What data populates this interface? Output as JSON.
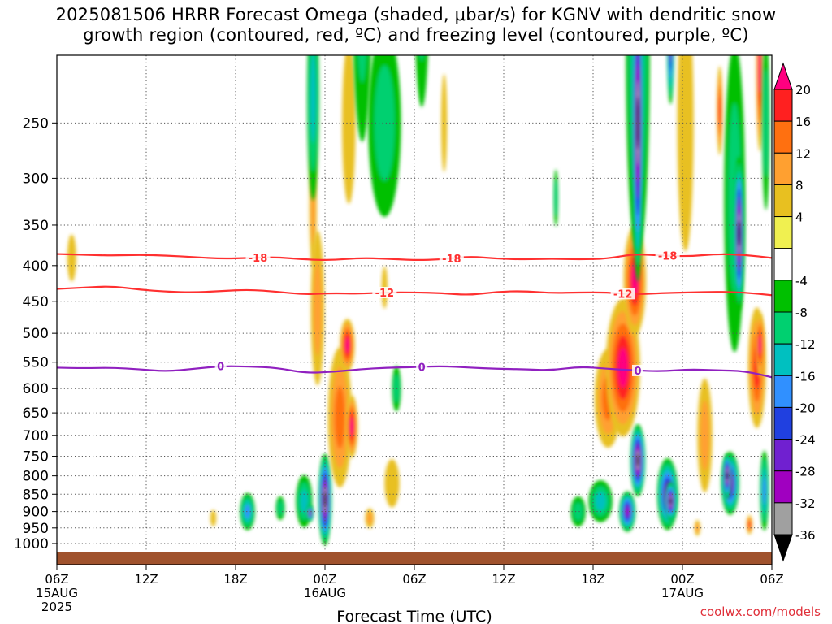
{
  "title": {
    "line1": "2025081506 HRRR Forecast Omega (shaded, μbar/s) for KGNV with dendritic snow",
    "line2": "growth region (contoured, red, ºC) and freezing level (contoured, purple, ºC)"
  },
  "credit": "coolwx.com/models",
  "chart_data": {
    "type": "heatmap",
    "xlabel": "Forecast Time (UTC)",
    "x_range_hours": [
      0,
      48
    ],
    "x_ticks": [
      {
        "hour": 0,
        "label": "06Z",
        "sub1": "15AUG",
        "sub2": "2025"
      },
      {
        "hour": 6,
        "label": "12Z"
      },
      {
        "hour": 12,
        "label": "18Z"
      },
      {
        "hour": 18,
        "label": "00Z",
        "sub1": "16AUG"
      },
      {
        "hour": 24,
        "label": "06Z"
      },
      {
        "hour": 30,
        "label": "12Z"
      },
      {
        "hour": 36,
        "label": "18Z"
      },
      {
        "hour": 42,
        "label": "00Z",
        "sub1": "17AUG"
      },
      {
        "hour": 48,
        "label": "06Z"
      }
    ],
    "y_scale": "log-pressure",
    "y_range_hpa": [
      200,
      1030
    ],
    "y_ticks": [
      250,
      300,
      350,
      400,
      450,
      500,
      550,
      600,
      650,
      700,
      750,
      800,
      850,
      900,
      950,
      1000
    ],
    "grid": "dotted",
    "colorbar": {
      "labels": [
        "20",
        "16",
        "12",
        "8",
        "4",
        "-4",
        "-8",
        "-12",
        "-16",
        "-20",
        "-24",
        "-28",
        "-32",
        "-36"
      ],
      "colors": [
        "#ff0080",
        "#ff2020",
        "#ff7010",
        "#ffa030",
        "#e8c020",
        "#f0f050",
        "#ffffff",
        "#00c000",
        "#00d070",
        "#00c0c0",
        "#3090ff",
        "#2040e0",
        "#7020d0",
        "#a000c0",
        "#a0a0a0",
        "#000000"
      ]
    },
    "contours": [
      {
        "name": "-18",
        "color": "#ff3030",
        "pressure_hpa": [
          385,
          386,
          387,
          386,
          387,
          389,
          391,
          390,
          389,
          392,
          393,
          390,
          391,
          393,
          392,
          388,
          391,
          392,
          391,
          392,
          391,
          385,
          387,
          388,
          385,
          386,
          390
        ],
        "label_hours": [
          13.5,
          26.5,
          41
        ]
      },
      {
        "name": "-12",
        "color": "#ff3030",
        "pressure_hpa": [
          432,
          430,
          428,
          433,
          436,
          437,
          435,
          433,
          436,
          440,
          438,
          439,
          437,
          437,
          438,
          441,
          436,
          435,
          438,
          437,
          437,
          440,
          438,
          437,
          436,
          437,
          441
        ],
        "label_hours": [
          22,
          38
        ]
      },
      {
        "name": "0",
        "color": "#9020c0",
        "pressure_hpa": [
          560,
          561,
          560,
          563,
          567,
          562,
          557,
          558,
          560,
          570,
          568,
          563,
          560,
          559,
          557,
          560,
          562,
          563,
          565,
          558,
          562,
          565,
          567,
          563,
          565,
          566,
          578
        ],
        "label_hours": [
          11,
          24.5,
          39
        ]
      }
    ],
    "omega_cells": [
      {
        "h": 1.0,
        "p": 390,
        "w": 0.6,
        "d": 60,
        "v": 4
      },
      {
        "h": 10.5,
        "p": 920,
        "w": 0.4,
        "d": 50,
        "v": 4
      },
      {
        "h": 12.8,
        "p": 900,
        "w": 1.0,
        "d": 110,
        "v": -16
      },
      {
        "h": 15.0,
        "p": 890,
        "w": 0.6,
        "d": 70,
        "v": -8
      },
      {
        "h": 16.6,
        "p": 870,
        "w": 1.1,
        "d": 150,
        "v": -12
      },
      {
        "h": 17.0,
        "p": 905,
        "w": 0.5,
        "d": 50,
        "v": -28
      },
      {
        "h": 17.2,
        "p": 160,
        "w": 0.4,
        "d": 120,
        "v": -8
      },
      {
        "h": 18.0,
        "p": 865,
        "w": 0.9,
        "d": 260,
        "v": -36
      },
      {
        "h": 17.2,
        "p": 330,
        "w": 0.5,
        "d": 130,
        "v": 8
      },
      {
        "h": 17.5,
        "p": 460,
        "w": 0.9,
        "d": 230,
        "v": 8
      },
      {
        "h": 19.0,
        "p": 660,
        "w": 1.6,
        "d": 300,
        "v": 12
      },
      {
        "h": 19.5,
        "p": 520,
        "w": 1.0,
        "d": 90,
        "v": 20
      },
      {
        "h": 19.8,
        "p": 680,
        "w": 0.8,
        "d": 140,
        "v": 20
      },
      {
        "h": 17.2,
        "p": 230,
        "w": 0.8,
        "d": 150,
        "v": -12
      },
      {
        "h": 19.6,
        "p": 250,
        "w": 0.9,
        "d": 130,
        "v": 4
      },
      {
        "h": 20.5,
        "p": 160,
        "w": 1.3,
        "d": 150,
        "v": -8
      },
      {
        "h": 22.0,
        "p": 250,
        "w": 2.2,
        "d": 150,
        "v": -8
      },
      {
        "h": 24.5,
        "p": 160,
        "w": 1.0,
        "d": 120,
        "v": -8
      },
      {
        "h": 21.0,
        "p": 920,
        "w": 0.6,
        "d": 60,
        "v": 8
      },
      {
        "h": 22.5,
        "p": 820,
        "w": 1.0,
        "d": 130,
        "v": 4
      },
      {
        "h": 22.0,
        "p": 430,
        "w": 0.4,
        "d": 60,
        "v": 4
      },
      {
        "h": 22.8,
        "p": 600,
        "w": 0.6,
        "d": 90,
        "v": -8
      },
      {
        "h": 26.0,
        "p": 250,
        "w": 0.4,
        "d": 80,
        "v": 4
      },
      {
        "h": 33.5,
        "p": 320,
        "w": 0.3,
        "d": 60,
        "v": -8
      },
      {
        "h": 36.5,
        "p": 870,
        "w": 1.6,
        "d": 120,
        "v": -12
      },
      {
        "h": 35.0,
        "p": 900,
        "w": 1.0,
        "d": 90,
        "v": -8
      },
      {
        "h": 37.0,
        "p": 620,
        "w": 1.8,
        "d": 200,
        "v": 12
      },
      {
        "h": 38.0,
        "p": 560,
        "w": 2.3,
        "d": 250,
        "v": 20
      },
      {
        "h": 38.8,
        "p": 420,
        "w": 1.5,
        "d": 150,
        "v": 20
      },
      {
        "h": 39.0,
        "p": 200,
        "w": 1.6,
        "d": 230,
        "v": -12
      },
      {
        "h": 39.0,
        "p": 250,
        "w": 0.8,
        "d": 240,
        "v": -36
      },
      {
        "h": 38.3,
        "p": 900,
        "w": 1.1,
        "d": 120,
        "v": -28
      },
      {
        "h": 39.0,
        "p": 760,
        "w": 1.0,
        "d": 180,
        "v": -36
      },
      {
        "h": 41.0,
        "p": 850,
        "w": 1.4,
        "d": 200,
        "v": -28
      },
      {
        "h": 41.2,
        "p": 870,
        "w": 0.8,
        "d": 110,
        "v": -36
      },
      {
        "h": 41.2,
        "p": 190,
        "w": 0.5,
        "d": 80,
        "v": -28
      },
      {
        "h": 42.2,
        "p": 250,
        "w": 1.1,
        "d": 200,
        "v": 4
      },
      {
        "h": 43.5,
        "p": 700,
        "w": 1.0,
        "d": 260,
        "v": 8
      },
      {
        "h": 45.5,
        "p": 320,
        "w": 1.4,
        "d": 300,
        "v": -8
      },
      {
        "h": 45.8,
        "p": 360,
        "w": 0.7,
        "d": 180,
        "v": -36
      },
      {
        "h": 45.2,
        "p": 820,
        "w": 1.2,
        "d": 170,
        "v": -28
      },
      {
        "h": 45.0,
        "p": 800,
        "w": 0.6,
        "d": 120,
        "v": -36
      },
      {
        "h": 47.0,
        "p": 560,
        "w": 1.2,
        "d": 220,
        "v": 16
      },
      {
        "h": 47.2,
        "p": 520,
        "w": 0.6,
        "d": 110,
        "v": 20
      },
      {
        "h": 47.5,
        "p": 840,
        "w": 0.6,
        "d": 220,
        "v": -16
      },
      {
        "h": 47.2,
        "p": 210,
        "w": 0.5,
        "d": 110,
        "v": 20
      },
      {
        "h": 47.6,
        "p": 250,
        "w": 0.5,
        "d": 140,
        "v": -8
      },
      {
        "h": 44.5,
        "p": 240,
        "w": 0.4,
        "d": 70,
        "v": 16
      },
      {
        "h": 43.0,
        "p": 950,
        "w": 0.4,
        "d": 50,
        "v": 8
      },
      {
        "h": 46.5,
        "p": 940,
        "w": 0.4,
        "d": 60,
        "v": 16
      }
    ]
  }
}
